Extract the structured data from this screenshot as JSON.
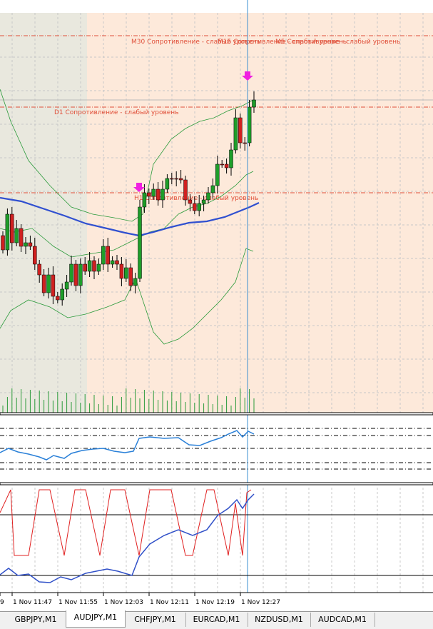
{
  "chart": {
    "levels": [
      "M30 Сопротивление - слабый уровень",
      "M15 Сопротивление - слабый уровень",
      "M5 Сопротивление - слабый уровень",
      "D1 Сопротивление - слабый уровень",
      "H1 Сопротивление - слабый уровень"
    ],
    "time_axis": [
      "9",
      "1 Nov 11:47",
      "1 Nov 11:55",
      "1 Nov 12:03",
      "1 Nov 12:11",
      "1 Nov 12:19",
      "1 Nov 12:27"
    ]
  },
  "tabs": [
    "GBPJPY,M1",
    "AUDJPY,M1",
    "CHFJPY,M1",
    "EURCAD,M1",
    "NZDUSD,M1",
    "AUDCAD,M1"
  ]
}
